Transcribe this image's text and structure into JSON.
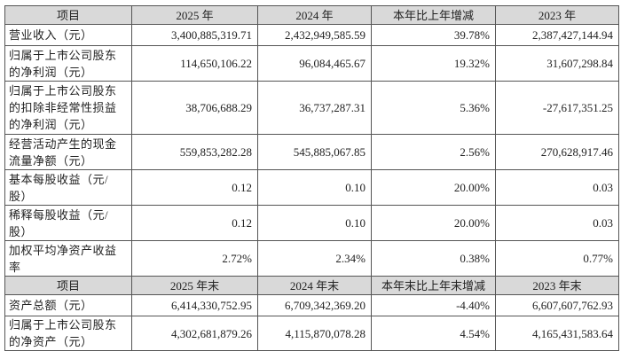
{
  "table": {
    "header": [
      "项目",
      "2025 年",
      "2024 年",
      "本年比上年增减",
      "2023 年"
    ],
    "rows": [
      [
        "营业收入（元）",
        "3,400,885,319.71",
        "2,432,949,585.59",
        "39.78%",
        "2,387,427,144.94"
      ],
      [
        "归属于上市公司股东的净利润（元）",
        "114,650,106.22",
        "96,084,465.67",
        "19.32%",
        "31,607,298.84"
      ],
      [
        "归属于上市公司股东的扣除非经常性损益的净利润（元）",
        "38,706,688.29",
        "36,737,287.31",
        "5.36%",
        "-27,617,351.25"
      ],
      [
        "经营活动产生的现金流量净额（元）",
        "559,853,282.28",
        "545,885,067.85",
        "2.56%",
        "270,628,917.46"
      ],
      [
        "基本每股收益（元/股）",
        "0.12",
        "0.10",
        "20.00%",
        "0.03"
      ],
      [
        "稀释每股收益（元/股）",
        "0.12",
        "0.10",
        "20.00%",
        "0.03"
      ],
      [
        "加权平均净资产收益率",
        "2.72%",
        "2.34%",
        "0.38%",
        "0.77%"
      ]
    ],
    "header2": [
      "项目",
      "2025 年末",
      "2024 年末",
      "本年末比上年末增减",
      "2023 年末"
    ],
    "rows2": [
      [
        "资产总额（元）",
        "6,414,330,752.95",
        "6,709,342,369.20",
        "-4.40%",
        "6,607,607,762.93"
      ],
      [
        "归属于上市公司股东的净资产（元）",
        "4,302,681,879.26",
        "4,115,870,078.28",
        "4.54%",
        "4,165,431,583.64"
      ]
    ]
  }
}
